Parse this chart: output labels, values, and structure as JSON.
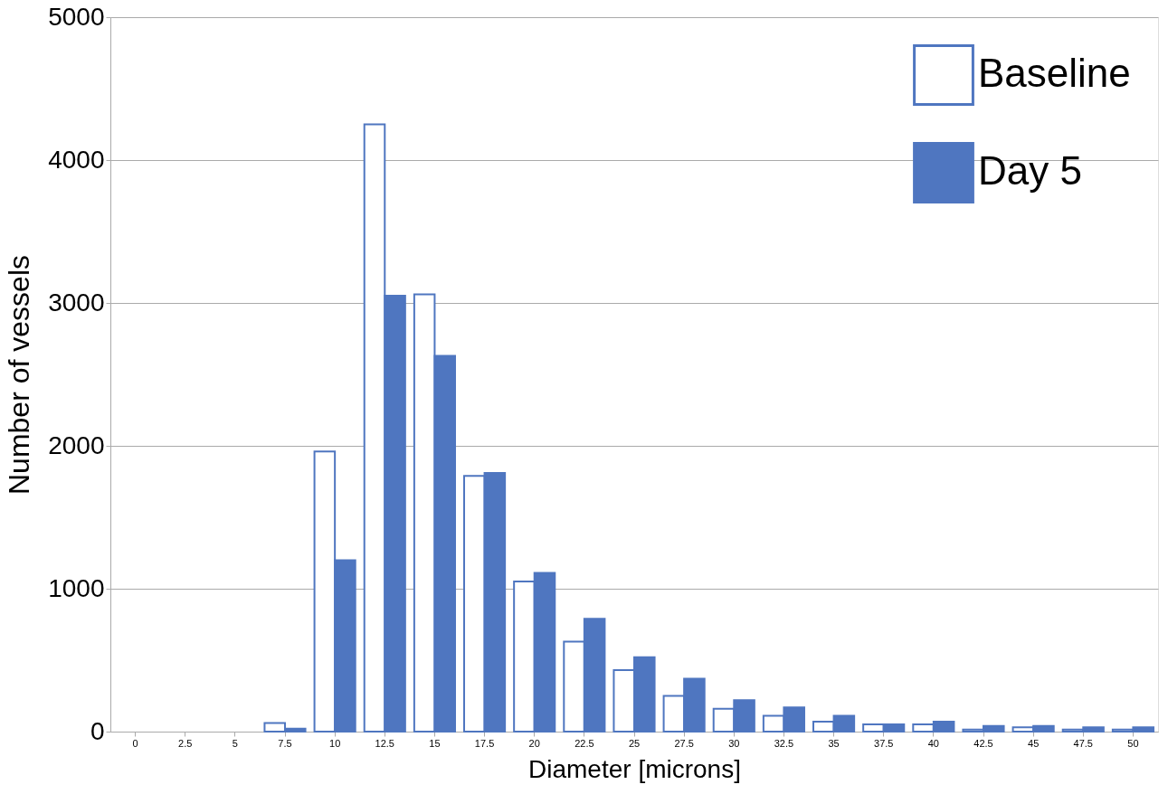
{
  "chart_data": {
    "type": "bar",
    "xlabel": "Diameter [microns]",
    "ylabel": "Number of vessels",
    "categories": [
      "0",
      "2.5",
      "5",
      "7.5",
      "10",
      "12.5",
      "15",
      "17.5",
      "20",
      "22.5",
      "25",
      "27.5",
      "30",
      "32.5",
      "35",
      "37.5",
      "40",
      "42.5",
      "45",
      "47.5",
      "50"
    ],
    "series": [
      {
        "name": "Baseline",
        "color": "#ffffff",
        "values": [
          0,
          0,
          0,
          60,
          1960,
          4250,
          3060,
          1790,
          1050,
          630,
          430,
          250,
          160,
          110,
          70,
          50,
          50,
          15,
          30,
          15,
          15
        ]
      },
      {
        "name": "Day 5",
        "color": "#4f76c0",
        "values": [
          0,
          0,
          0,
          20,
          1200,
          3050,
          2630,
          1810,
          1110,
          790,
          520,
          370,
          220,
          170,
          110,
          50,
          70,
          40,
          40,
          30,
          30
        ]
      }
    ],
    "ylim": [
      0,
      5000
    ],
    "yticks": [
      0,
      1000,
      2000,
      3000,
      4000,
      5000
    ],
    "grid": "y",
    "legend": "top right"
  }
}
